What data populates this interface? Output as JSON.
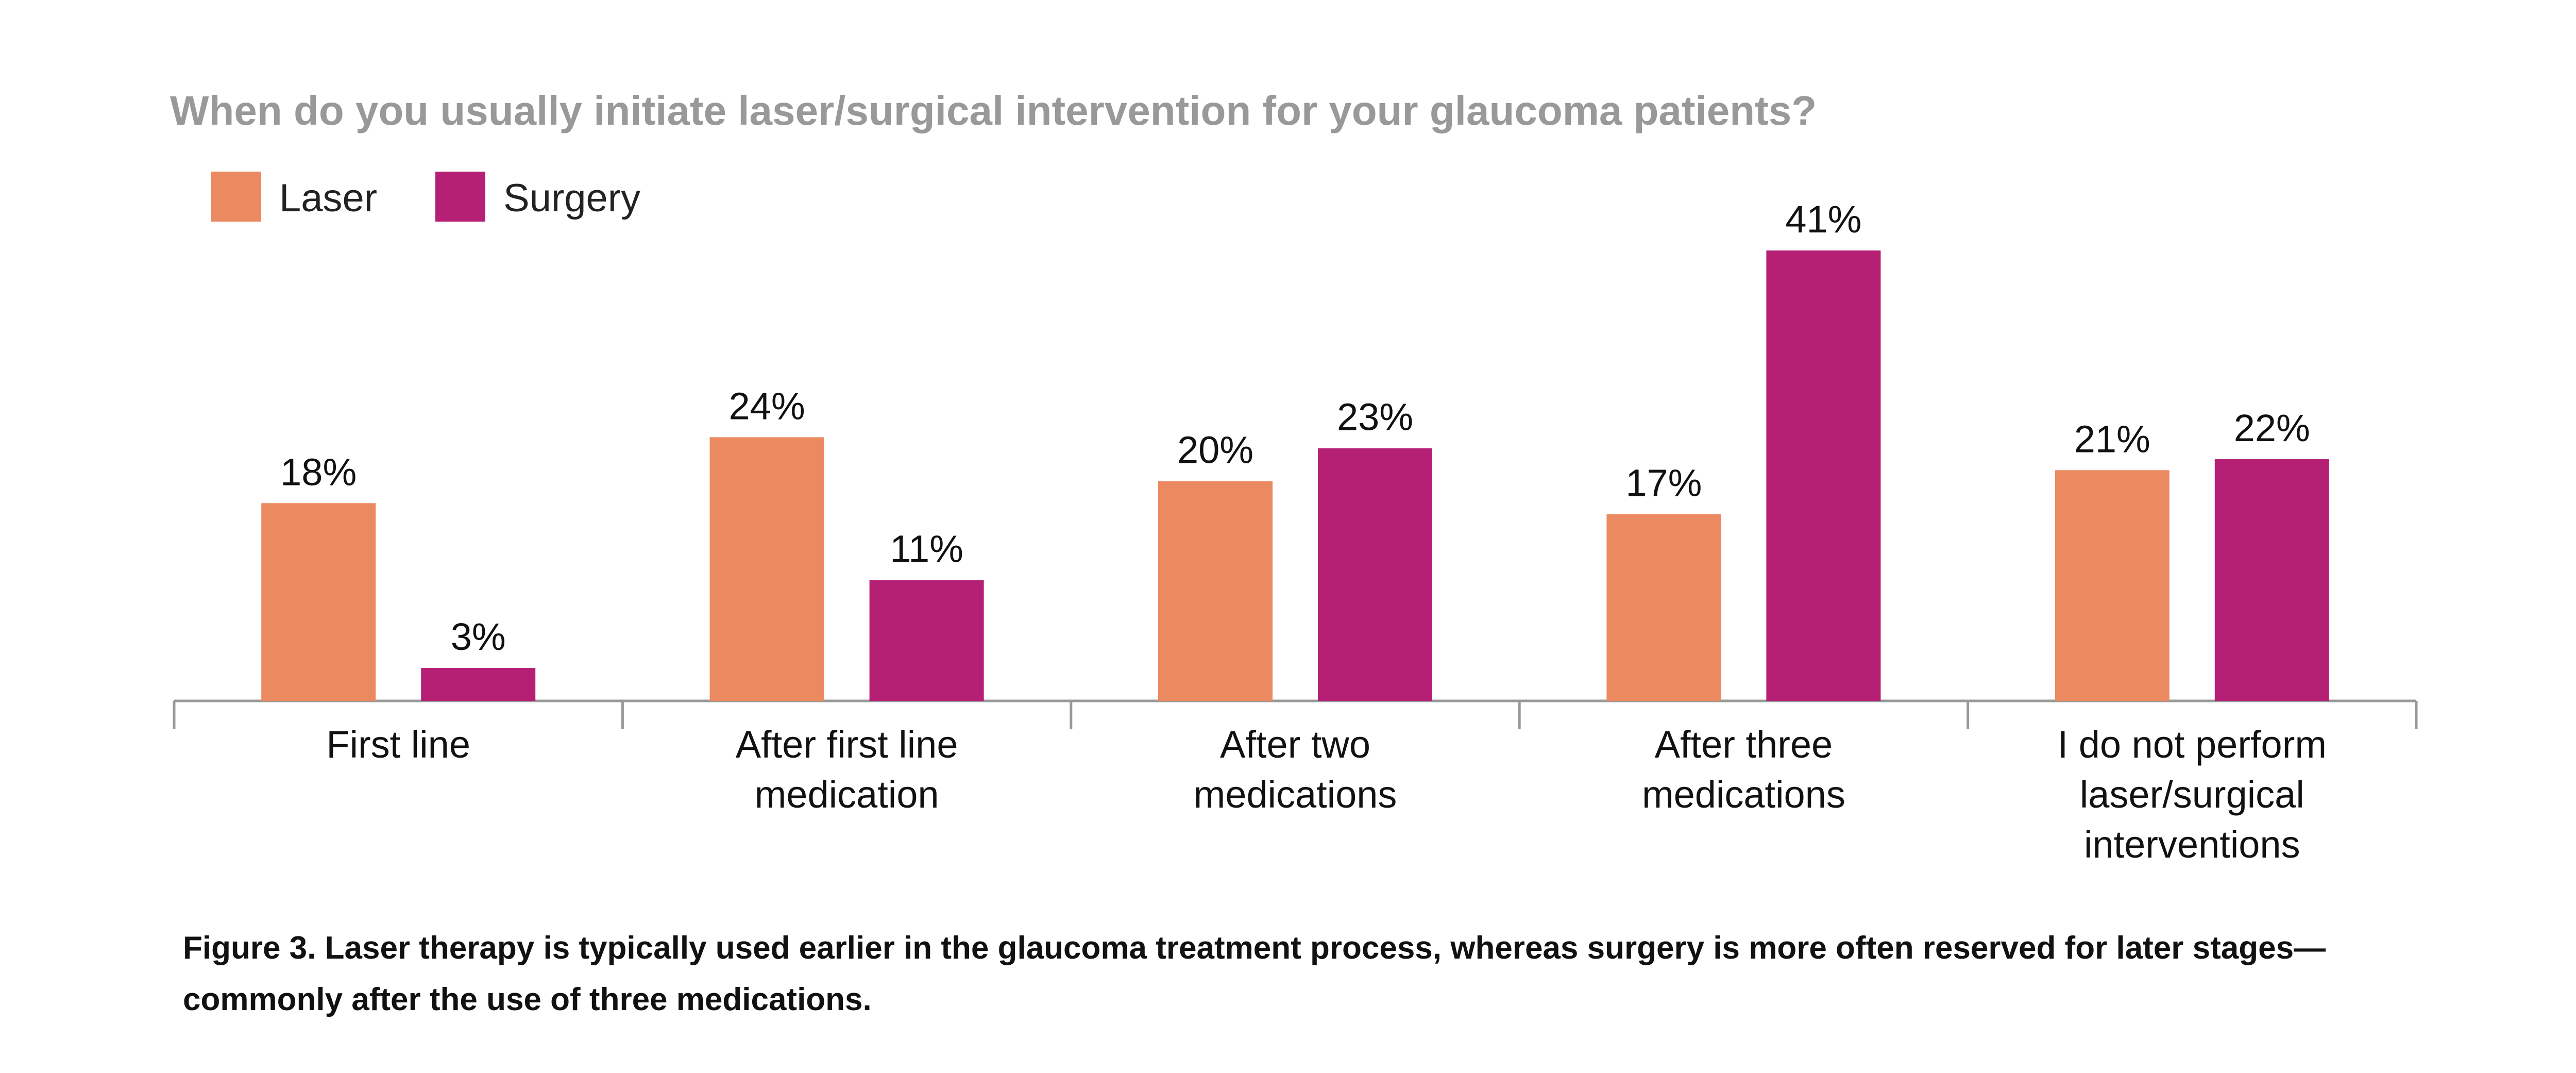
{
  "chart_data": {
    "type": "bar",
    "title": "When do you usually initiate laser/surgical intervention for your glaucoma patients?",
    "categories": [
      [
        "First line"
      ],
      [
        "After first line",
        "medication"
      ],
      [
        "After two",
        "medications"
      ],
      [
        "After three",
        "medications"
      ],
      [
        "I do not perform",
        "laser/surgical",
        "interventions"
      ]
    ],
    "series": [
      {
        "name": "Laser",
        "color": "#EB8960",
        "values": [
          18,
          24,
          20,
          17,
          21
        ],
        "labels": [
          "18%",
          "24%",
          "20%",
          "17%",
          "21%"
        ]
      },
      {
        "name": "Surgery",
        "color": "#B52074",
        "values": [
          3,
          11,
          23,
          41,
          22
        ],
        "labels": [
          "3%",
          "11%",
          "23%",
          "41%",
          "22%"
        ]
      }
    ],
    "ylim": [
      0,
      41
    ],
    "legend": "top-left",
    "grid": false
  },
  "caption": "Figure 3. Laser therapy is typically used earlier in the glaucoma treatment process, whereas surgery is more often reserved for later stages—commonly after the use of three medications."
}
